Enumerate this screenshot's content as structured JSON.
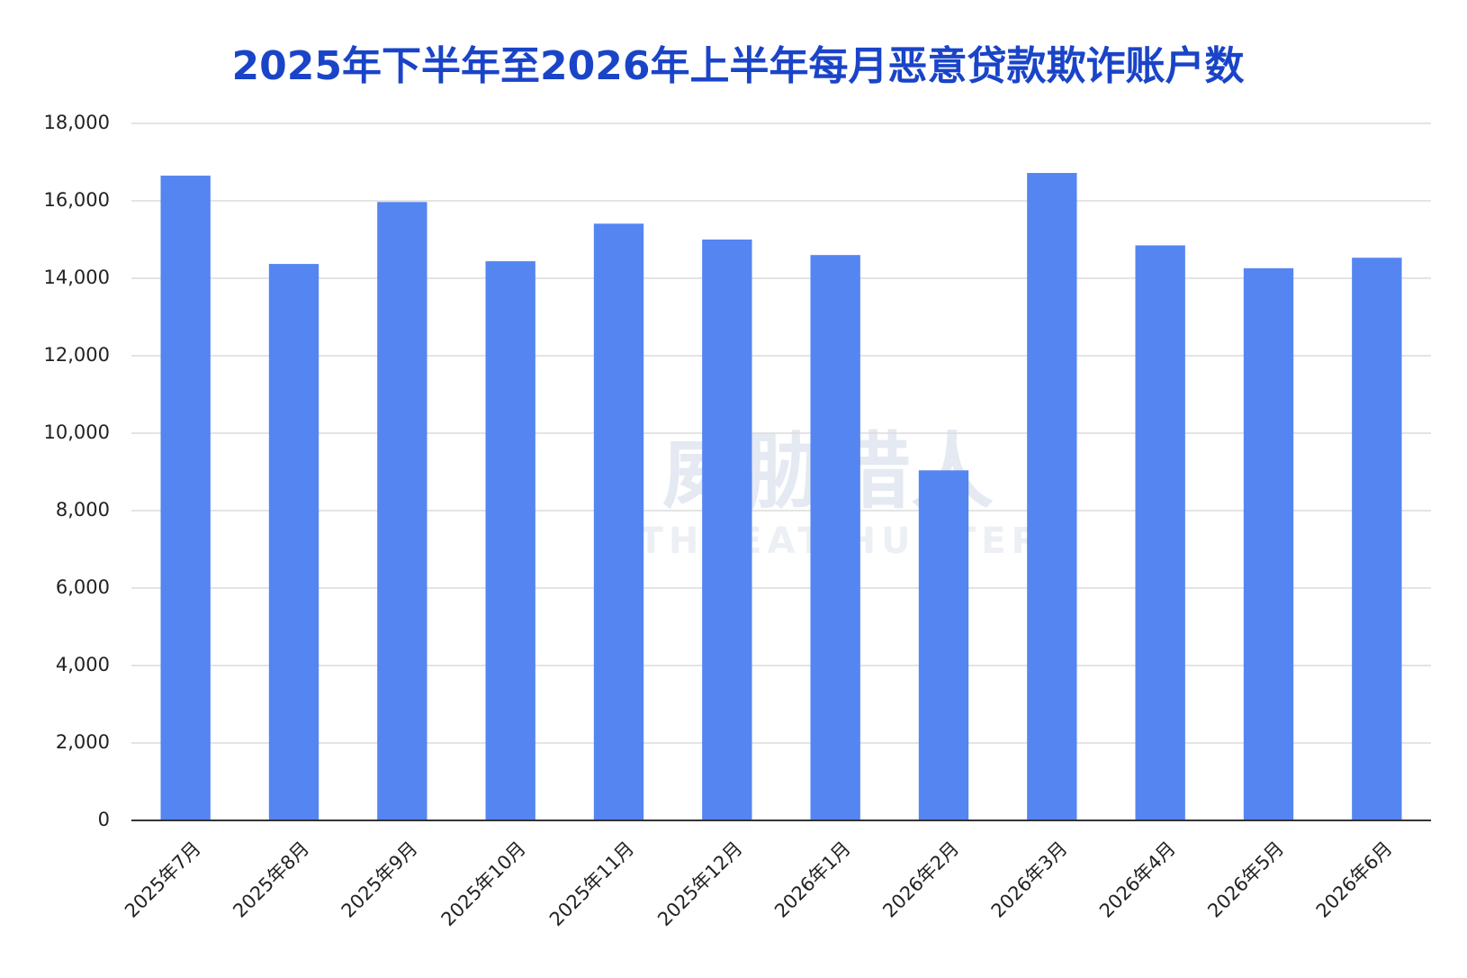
{
  "chart_data": {
    "type": "bar",
    "title": "2025年下半年至2026年上半年每月恶意贷款欺诈账户数",
    "watermark": [
      "威胁猎人",
      "THREAT HUNTER"
    ],
    "categories": [
      "2025年7月",
      "2025年8月",
      "2025年9月",
      "2025年10月",
      "2025年11月",
      "2025年12月",
      "2026年1月",
      "2026年2月",
      "2026年3月",
      "2026年4月",
      "2026年5月",
      "2026年6月"
    ],
    "values": [
      16650,
      14370,
      15970,
      14440,
      15410,
      15000,
      14600,
      9040,
      16720,
      14850,
      14260,
      14530
    ],
    "color": "#5585f0",
    "ylim": [
      0,
      18000
    ],
    "yticks": [
      0,
      {
        "value": 2000,
        "label": "2,000"
      },
      {
        "value": 4000,
        "label": "4,000"
      },
      {
        "value": 6000,
        "label": "6,000"
      },
      {
        "value": 8000,
        "label": "8,000"
      },
      {
        "value": 10000,
        "label": "10,000"
      },
      {
        "value": 12000,
        "label": "12,000"
      },
      {
        "value": 14000,
        "label": "14,000"
      },
      {
        "value": 16000,
        "label": "16,000"
      },
      {
        "value": 18000,
        "label": "18,000"
      }
    ],
    "grid": true
  }
}
